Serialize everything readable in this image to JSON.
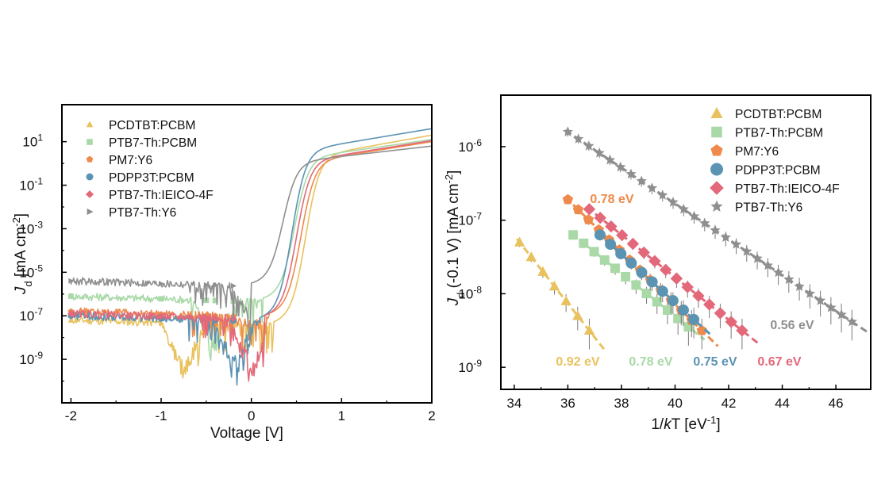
{
  "chart_data": [
    {
      "type": "line",
      "xlabel": "Voltage [V]",
      "ylabel_parts": {
        "j": "J",
        "sub": "d",
        "rest": " [mA cm",
        "sup": "-2",
        "end": "]"
      },
      "scale_y": "log",
      "xlim": [
        -2.1,
        2
      ],
      "ylim_log10": [
        -11,
        2.7
      ],
      "x_ticks": [
        -2,
        -1,
        0,
        1,
        2
      ],
      "x_tick_labels": [
        "-2",
        "-1",
        "0",
        "1",
        "2"
      ],
      "y_ticks_log10": [
        1,
        -1,
        -3,
        -5,
        -7,
        -9
      ],
      "y_tick_mant": [
        "10",
        "10",
        "10",
        "10",
        "10",
        "10"
      ],
      "y_tick_exp": [
        "1",
        "-1",
        "-3",
        "-5",
        "-7",
        "-9"
      ],
      "legend_position": "top-left",
      "series": [
        {
          "name": "PCDTBT:PCBM",
          "color": "#e9c25f",
          "marker": "triangle",
          "dark_log10": -7.2,
          "dip_v": -0.75,
          "dip_log10": -9.9,
          "onset_v": 0.6,
          "j2_log10": 1.3
        },
        {
          "name": "PTB7-Th:PCBM",
          "color": "#a9d9a7",
          "marker": "square",
          "dark_log10": -6.1,
          "dip_v": -0.4,
          "dip_log10": -8.6,
          "onset_v": 0.48,
          "j2_log10": 1.1
        },
        {
          "name": "PM7:Y6",
          "color": "#ee8a4b",
          "marker": "pentagon",
          "dark_log10": -6.8,
          "dip_v": 0.0,
          "dip_log10": -7.3,
          "onset_v": 0.55,
          "j2_log10": 1.0
        },
        {
          "name": "PDPP3T:PCBM",
          "color": "#5b93b3",
          "marker": "circle",
          "dark_log10": -7.0,
          "dip_v": -0.2,
          "dip_log10": -9.5,
          "onset_v": 0.45,
          "j2_log10": 1.6
        },
        {
          "name": "PTB7-Th:IEICO-4F",
          "color": "#e2687a",
          "marker": "diamond",
          "dark_log10": -6.9,
          "dip_v": 0.0,
          "dip_log10": -10.1,
          "onset_v": 0.5,
          "j2_log10": 1.05
        },
        {
          "name": "PTB7-Th:Y6",
          "color": "#8f8f8f",
          "marker": "triangle-right",
          "dark_log10": -5.4,
          "dip_v": 0.0,
          "dip_log10": -7.1,
          "onset_v": 0.35,
          "j2_log10": 0.8
        }
      ]
    },
    {
      "type": "scatter",
      "xlabel_parts": {
        "pre": "1/",
        "k": "k",
        "post": "T [eV",
        "sup": "-1",
        "end": "]"
      },
      "ylabel_parts": {
        "j": "J",
        "sub": "d",
        "rest": " (-0.1 V) [mA cm",
        "sup": "-2",
        "end": "]"
      },
      "scale_y": "log",
      "xlim": [
        33.5,
        47.3
      ],
      "ylim_log10": [
        -9.3,
        -5.3
      ],
      "x_ticks": [
        34,
        36,
        38,
        40,
        42,
        44,
        46
      ],
      "x_tick_labels": [
        "34",
        "36",
        "38",
        "40",
        "42",
        "44",
        "46"
      ],
      "y_ticks_log10": [
        -6,
        -7,
        -8,
        -9
      ],
      "y_tick_mant": [
        "10",
        "10",
        "10",
        "10"
      ],
      "y_tick_exp": [
        "-6",
        "-7",
        "-8",
        "-9"
      ],
      "legend_position": "top-right",
      "series": [
        {
          "name": "PCDTBT:PCBM",
          "color": "#e9c25f",
          "marker": "triangle",
          "x_range": [
            34.2,
            36.8
          ],
          "log10_range": [
            -7.3,
            -8.5
          ],
          "activation_energy": "0.92 eV"
        },
        {
          "name": "PTB7-Th:PCBM",
          "color": "#a9d9a7",
          "marker": "square",
          "x_range": [
            36.2,
            40.5
          ],
          "log10_range": [
            -7.2,
            -8.45
          ],
          "activation_energy": "0.78 eV"
        },
        {
          "name": "PM7:Y6",
          "color": "#ee8a4b",
          "marker": "pentagon",
          "x_range": [
            36.0,
            41.0
          ],
          "log10_range": [
            -6.72,
            -8.5
          ],
          "activation_energy": "0.78 eV"
        },
        {
          "name": "PDPP3T:PCBM",
          "color": "#5b93b3",
          "marker": "circle",
          "x_range": [
            37.2,
            40.7
          ],
          "log10_range": [
            -7.2,
            -8.35
          ],
          "activation_energy": "0.75 eV"
        },
        {
          "name": "PTB7-Th:IEICO-4F",
          "color": "#e2687a",
          "marker": "diamond",
          "x_range": [
            36.8,
            42.5
          ],
          "log10_range": [
            -6.85,
            -8.5
          ],
          "activation_energy": "0.67 eV"
        },
        {
          "name": "PTB7-Th:Y6",
          "color": "#8f8f8f",
          "marker": "star",
          "x_range": [
            36.0,
            46.6
          ],
          "log10_range": [
            -5.8,
            -8.38
          ],
          "activation_energy": "0.56 eV"
        }
      ],
      "annotations": [
        "0.78 eV",
        "0.92 eV",
        "0.78 eV",
        "0.75 eV",
        "0.67 eV",
        "0.56 eV"
      ]
    }
  ]
}
